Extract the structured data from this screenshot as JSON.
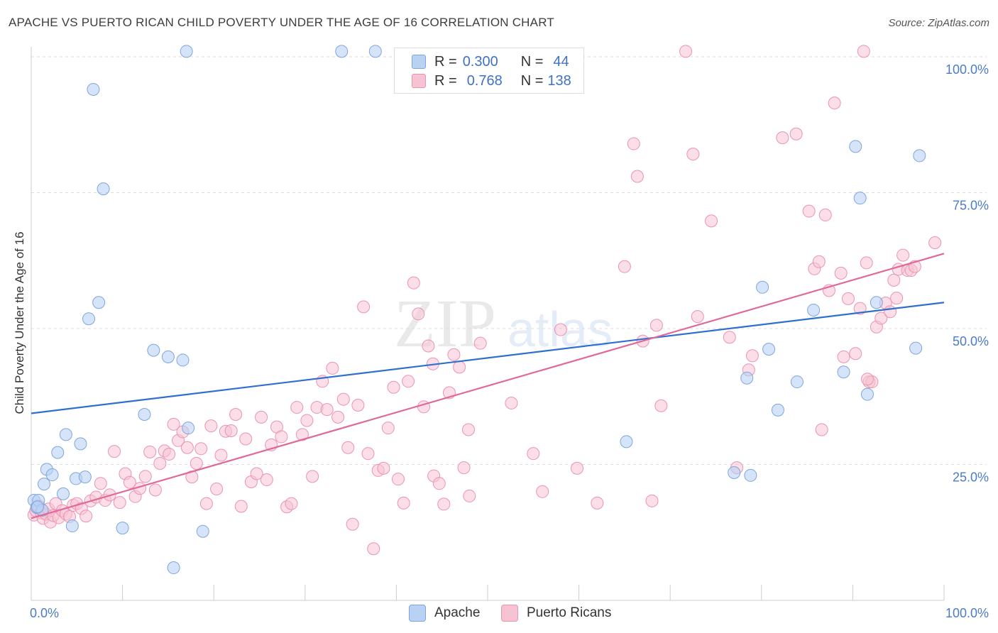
{
  "title": "APACHE VS PUERTO RICAN CHILD POVERTY UNDER THE AGE OF 16 CORRELATION CHART",
  "source": "Source: ZipAtlas.com",
  "watermark": {
    "zip": "ZIP",
    "atlas": "atlas"
  },
  "legend": {
    "rows": [
      {
        "r_label": "R =",
        "r_value": "0.300",
        "n_label": "N =",
        "n_value": "44"
      },
      {
        "r_label": "R =",
        "r_value": "0.768",
        "n_label": "N =",
        "n_value": "138"
      }
    ]
  },
  "bottom_legend": {
    "apache": "Apache",
    "puerto": "Puerto Ricans"
  },
  "colors": {
    "apache_fill": "#b9d2f3",
    "apache_stroke": "#7ea6dd",
    "apache_line": "#2f6fd0",
    "puerto_fill": "#f7c3d3",
    "puerto_stroke": "#e994b0",
    "puerto_line": "#e0699a",
    "grid": "#dddddd",
    "tick_text": "#4a7cc9"
  },
  "chart_data": {
    "type": "scatter",
    "title": "APACHE VS PUERTO RICAN CHILD POVERTY UNDER THE AGE OF 16 CORRELATION CHART",
    "xlabel": "",
    "ylabel": "Child Poverty Under the Age of 16",
    "xlim": [
      0,
      100
    ],
    "ylim": [
      0,
      100
    ],
    "x_tick_labels": [
      "0.0%",
      "100.0%"
    ],
    "y_ticks": [
      {
        "value": 25,
        "label": "25.0%"
      },
      {
        "value": 50,
        "label": "50.0%"
      },
      {
        "value": 75,
        "label": "75.0%"
      },
      {
        "value": 100,
        "label": "100.0%"
      }
    ],
    "series": [
      {
        "name": "Apache",
        "R": 0.3,
        "N": 44,
        "trend": {
          "x": [
            0,
            100
          ],
          "y": [
            34.4,
            54.8
          ]
        },
        "points": [
          [
            0.3,
            18.4
          ],
          [
            0.6,
            17.1
          ],
          [
            0.8,
            18.4
          ],
          [
            1.2,
            16.6
          ],
          [
            0.7,
            17.2
          ],
          [
            1.4,
            21.4
          ],
          [
            1.7,
            24.1
          ],
          [
            2.3,
            23.1
          ],
          [
            2.9,
            27.2
          ],
          [
            3.5,
            19.6
          ],
          [
            3.8,
            30.5
          ],
          [
            4.5,
            13.7
          ],
          [
            4.9,
            22.4
          ],
          [
            5.4,
            28.8
          ],
          [
            5.9,
            22.7
          ],
          [
            6.3,
            51.8
          ],
          [
            6.8,
            94.0
          ],
          [
            7.4,
            54.8
          ],
          [
            7.9,
            75.7
          ],
          [
            10.0,
            13.3
          ],
          [
            12.4,
            34.2
          ],
          [
            13.4,
            46.0
          ],
          [
            15.0,
            44.8
          ],
          [
            15.6,
            6.0
          ],
          [
            16.6,
            44.2
          ],
          [
            17.0,
            101.0
          ],
          [
            17.2,
            31.7
          ],
          [
            18.8,
            12.7
          ],
          [
            34.0,
            101.0
          ],
          [
            37.7,
            101.0
          ],
          [
            65.2,
            29.2
          ],
          [
            77.0,
            23.5
          ],
          [
            78.8,
            23.0
          ],
          [
            78.4,
            40.9
          ],
          [
            80.1,
            57.6
          ],
          [
            80.8,
            46.2
          ],
          [
            81.8,
            35.0
          ],
          [
            83.9,
            40.2
          ],
          [
            85.7,
            53.4
          ],
          [
            89.0,
            42.0
          ],
          [
            90.3,
            83.5
          ],
          [
            90.8,
            74.0
          ],
          [
            91.6,
            37.9
          ],
          [
            92.6,
            54.8
          ],
          [
            96.9,
            46.4
          ],
          [
            97.3,
            81.8
          ]
        ]
      },
      {
        "name": "Puerto Ricans",
        "R": 0.768,
        "N": 138,
        "trend": {
          "x": [
            0,
            100
          ],
          "y": [
            15.1,
            63.8
          ]
        },
        "points": [
          [
            0.3,
            15.7
          ],
          [
            0.5,
            16.5
          ],
          [
            0.8,
            17.4
          ],
          [
            1.1,
            16.1
          ],
          [
            1.3,
            15.1
          ],
          [
            1.6,
            15.9
          ],
          [
            1.9,
            16.8
          ],
          [
            2.1,
            14.4
          ],
          [
            2.4,
            15.6
          ],
          [
            2.7,
            17.8
          ],
          [
            3.0,
            15.2
          ],
          [
            3.4,
            16.5
          ],
          [
            3.8,
            15.9
          ],
          [
            4.2,
            15.4
          ],
          [
            4.6,
            17.5
          ],
          [
            5.0,
            17.8
          ],
          [
            5.5,
            16.9
          ],
          [
            6.0,
            15.5
          ],
          [
            6.5,
            18.3
          ],
          [
            7.1,
            19.0
          ],
          [
            7.6,
            21.5
          ],
          [
            8.1,
            18.4
          ],
          [
            8.6,
            19.4
          ],
          [
            9.1,
            27.4
          ],
          [
            9.7,
            18.0
          ],
          [
            10.3,
            23.3
          ],
          [
            10.8,
            21.7
          ],
          [
            11.4,
            19.1
          ],
          [
            11.9,
            20.6
          ],
          [
            12.5,
            22.8
          ],
          [
            13.0,
            27.3
          ],
          [
            13.6,
            20.3
          ],
          [
            14.1,
            25.2
          ],
          [
            14.6,
            27.5
          ],
          [
            15.1,
            26.9
          ],
          [
            15.6,
            32.4
          ],
          [
            16.1,
            29.4
          ],
          [
            16.6,
            31.0
          ],
          [
            17.1,
            28.1
          ],
          [
            17.6,
            22.7
          ],
          [
            18.1,
            25.2
          ],
          [
            18.6,
            27.9
          ],
          [
            19.2,
            17.8
          ],
          [
            19.7,
            32.1
          ],
          [
            20.3,
            20.5
          ],
          [
            20.8,
            26.7
          ],
          [
            21.3,
            31.1
          ],
          [
            21.9,
            31.2
          ],
          [
            22.4,
            34.2
          ],
          [
            23.0,
            17.3
          ],
          [
            23.5,
            29.7
          ],
          [
            24.1,
            21.8
          ],
          [
            24.7,
            23.3
          ],
          [
            25.2,
            33.7
          ],
          [
            25.8,
            22.2
          ],
          [
            26.3,
            28.6
          ],
          [
            26.9,
            31.9
          ],
          [
            27.4,
            30.1
          ],
          [
            28.0,
            17.2
          ],
          [
            28.5,
            17.8
          ],
          [
            29.1,
            35.5
          ],
          [
            29.7,
            30.5
          ],
          [
            30.2,
            33.1
          ],
          [
            30.8,
            22.8
          ],
          [
            31.3,
            35.5
          ],
          [
            31.9,
            40.3
          ],
          [
            32.4,
            35.1
          ],
          [
            33.0,
            42.7
          ],
          [
            33.6,
            33.7
          ],
          [
            34.2,
            37.0
          ],
          [
            34.7,
            28.1
          ],
          [
            35.2,
            14.0
          ],
          [
            35.8,
            35.9
          ],
          [
            36.4,
            54.0
          ],
          [
            36.9,
            27.0
          ],
          [
            37.5,
            9.5
          ],
          [
            38.0,
            23.9
          ],
          [
            38.6,
            24.3
          ],
          [
            39.1,
            31.7
          ],
          [
            39.7,
            39.2
          ],
          [
            40.2,
            22.3
          ],
          [
            40.8,
            17.9
          ],
          [
            41.3,
            40.3
          ],
          [
            41.9,
            58.4
          ],
          [
            42.4,
            52.7
          ],
          [
            43.0,
            35.6
          ],
          [
            43.5,
            46.8
          ],
          [
            44.1,
            22.9
          ],
          [
            44.7,
            21.5
          ],
          [
            45.2,
            17.7
          ],
          [
            45.8,
            38.2
          ],
          [
            46.3,
            45.2
          ],
          [
            46.9,
            42.9
          ],
          [
            47.4,
            24.4
          ],
          [
            48.0,
            19.2
          ],
          [
            55.0,
            27.0
          ],
          [
            58.0,
            49.8
          ],
          [
            65.0,
            61.4
          ],
          [
            66.0,
            84.0
          ],
          [
            66.4,
            78.0
          ],
          [
            67.0,
            47.7
          ],
          [
            68.0,
            18.3
          ],
          [
            69.0,
            35.8
          ],
          [
            71.7,
            101.0
          ],
          [
            72.5,
            82.1
          ],
          [
            73.0,
            52.2
          ],
          [
            74.5,
            69.8
          ],
          [
            76.5,
            48.4
          ],
          [
            77.3,
            24.4
          ],
          [
            78.6,
            42.4
          ],
          [
            79.0,
            45.0
          ],
          [
            82.3,
            85.1
          ],
          [
            83.8,
            85.8
          ],
          [
            85.2,
            71.6
          ],
          [
            85.8,
            61.0
          ],
          [
            86.3,
            62.3
          ],
          [
            86.6,
            31.4
          ],
          [
            87.0,
            70.9
          ],
          [
            87.4,
            57.0
          ],
          [
            88.0,
            91.5
          ],
          [
            88.7,
            60.2
          ],
          [
            89.0,
            44.8
          ],
          [
            89.5,
            55.5
          ],
          [
            90.3,
            45.4
          ],
          [
            90.8,
            53.7
          ],
          [
            91.5,
            62.1
          ],
          [
            91.8,
            40.2
          ],
          [
            92.1,
            40.2
          ],
          [
            92.6,
            50.3
          ],
          [
            93.1,
            51.9
          ],
          [
            93.6,
            54.7
          ],
          [
            94.1,
            53.1
          ],
          [
            94.5,
            58.9
          ],
          [
            95.0,
            60.9
          ],
          [
            95.5,
            63.5
          ],
          [
            96.0,
            60.7
          ],
          [
            96.4,
            60.7
          ],
          [
            96.8,
            61.4
          ],
          [
            99.0,
            65.8
          ],
          [
            91.2,
            101.0
          ],
          [
            91.6,
            40.7
          ],
          [
            94.8,
            55.6
          ],
          [
            68.5,
            50.6
          ],
          [
            52.6,
            36.3
          ],
          [
            56.0,
            20.0
          ],
          [
            59.8,
            24.3
          ],
          [
            62.0,
            17.9
          ],
          [
            44.0,
            43.5
          ],
          [
            47.9,
            31.4
          ],
          [
            49.2,
            47.3
          ]
        ]
      }
    ]
  }
}
